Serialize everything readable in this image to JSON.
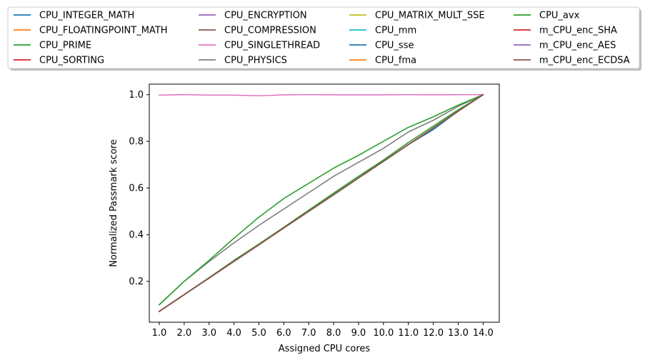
{
  "chart_data": {
    "type": "line",
    "title": "",
    "xlabel": "Assigned CPU cores",
    "ylabel": "Normalized Passmark score",
    "x": [
      1,
      2,
      3,
      4,
      5,
      6,
      7,
      8,
      9,
      10,
      11,
      12,
      13,
      14
    ],
    "x_tick_labels": [
      "1.0",
      "2.0",
      "3.0",
      "4.0",
      "5.0",
      "6.0",
      "7.0",
      "8.0",
      "9.0",
      "10.0",
      "11.0",
      "12.0",
      "13.0",
      "14.0"
    ],
    "y_ticks": [
      0.2,
      0.4,
      0.6,
      0.8,
      1.0
    ],
    "y_tick_labels": [
      "0.2",
      "0.4",
      "0.6",
      "0.8",
      "1.0"
    ],
    "xlim": [
      0.6,
      14.65
    ],
    "ylim": [
      0.025,
      1.045
    ],
    "grid": false,
    "legend_position": "top, above plot, 4 columns",
    "series": [
      {
        "name": "CPU_INTEGER_MATH",
        "color": "#1f77b4",
        "values": [
          0.071,
          0.143,
          0.214,
          0.286,
          0.357,
          0.429,
          0.5,
          0.571,
          0.643,
          0.714,
          0.786,
          0.85,
          0.929,
          1.0
        ]
      },
      {
        "name": "CPU_FLOATINGPOINT_MATH",
        "color": "#ff7f0e",
        "values": [
          0.071,
          0.143,
          0.214,
          0.286,
          0.357,
          0.429,
          0.5,
          0.571,
          0.643,
          0.714,
          0.786,
          0.857,
          0.929,
          1.0
        ]
      },
      {
        "name": "CPU_PRIME",
        "color": "#2ca02c",
        "values": [
          0.072,
          0.144,
          0.216,
          0.29,
          0.36,
          0.432,
          0.505,
          0.578,
          0.65,
          0.72,
          0.795,
          0.865,
          0.935,
          1.0
        ]
      },
      {
        "name": "CPU_SORTING",
        "color": "#d62728",
        "values": [
          0.071,
          0.143,
          0.214,
          0.286,
          0.357,
          0.429,
          0.5,
          0.571,
          0.643,
          0.714,
          0.786,
          0.857,
          0.929,
          1.0
        ]
      },
      {
        "name": "CPU_ENCRYPTION",
        "color": "#9467bd",
        "values": [
          0.071,
          0.143,
          0.214,
          0.286,
          0.357,
          0.429,
          0.5,
          0.571,
          0.643,
          0.714,
          0.786,
          0.857,
          0.929,
          1.0
        ]
      },
      {
        "name": "CPU_COMPRESSION",
        "color": "#8c564b",
        "values": [
          0.071,
          0.143,
          0.214,
          0.286,
          0.357,
          0.429,
          0.5,
          0.571,
          0.643,
          0.714,
          0.786,
          0.857,
          0.929,
          1.0
        ]
      },
      {
        "name": "CPU_SINGLETHREAD",
        "color": "#e377c2",
        "values": [
          0.998,
          1.0,
          0.998,
          0.998,
          0.995,
          0.999,
          1.0,
          0.999,
          0.999,
          0.999,
          1.0,
          0.999,
          1.0,
          1.0
        ]
      },
      {
        "name": "CPU_PHYSICS",
        "color": "#7f7f7f",
        "values": [
          0.1,
          0.2,
          0.285,
          0.365,
          0.44,
          0.51,
          0.58,
          0.65,
          0.71,
          0.77,
          0.84,
          0.89,
          0.95,
          1.0
        ]
      },
      {
        "name": "CPU_MATRIX_MULT_SSE",
        "color": "#bcbd22",
        "values": [
          0.071,
          0.143,
          0.214,
          0.286,
          0.357,
          0.429,
          0.5,
          0.571,
          0.643,
          0.714,
          0.786,
          0.857,
          0.929,
          1.0
        ]
      },
      {
        "name": "CPU_mm",
        "color": "#17becf",
        "values": [
          0.071,
          0.143,
          0.214,
          0.286,
          0.357,
          0.429,
          0.5,
          0.571,
          0.643,
          0.714,
          0.786,
          0.857,
          0.929,
          1.0
        ]
      },
      {
        "name": "CPU_sse",
        "color": "#1f77b4",
        "values": [
          0.071,
          0.143,
          0.214,
          0.286,
          0.357,
          0.429,
          0.5,
          0.571,
          0.643,
          0.714,
          0.786,
          0.857,
          0.929,
          1.0
        ]
      },
      {
        "name": "CPU_fma",
        "color": "#ff7f0e",
        "values": [
          0.071,
          0.143,
          0.214,
          0.286,
          0.357,
          0.429,
          0.5,
          0.571,
          0.643,
          0.714,
          0.786,
          0.857,
          0.929,
          1.0
        ]
      },
      {
        "name": "CPU_avx",
        "color": "#2ca02c",
        "values": [
          0.1,
          0.2,
          0.29,
          0.385,
          0.475,
          0.555,
          0.62,
          0.685,
          0.74,
          0.8,
          0.86,
          0.905,
          0.955,
          1.0
        ]
      },
      {
        "name": "m_CPU_enc_SHA",
        "color": "#d62728",
        "values": [
          0.071,
          0.143,
          0.214,
          0.286,
          0.357,
          0.429,
          0.5,
          0.571,
          0.643,
          0.714,
          0.786,
          0.857,
          0.929,
          1.0
        ]
      },
      {
        "name": "m_CPU_enc_AES",
        "color": "#9467bd",
        "values": [
          0.071,
          0.143,
          0.214,
          0.286,
          0.357,
          0.429,
          0.5,
          0.571,
          0.643,
          0.714,
          0.786,
          0.857,
          0.929,
          1.0
        ]
      },
      {
        "name": "m_CPU_enc_ECDSA",
        "color": "#8c564b",
        "values": [
          0.071,
          0.143,
          0.214,
          0.286,
          0.357,
          0.429,
          0.5,
          0.571,
          0.643,
          0.714,
          0.786,
          0.857,
          0.929,
          1.0
        ]
      }
    ]
  }
}
